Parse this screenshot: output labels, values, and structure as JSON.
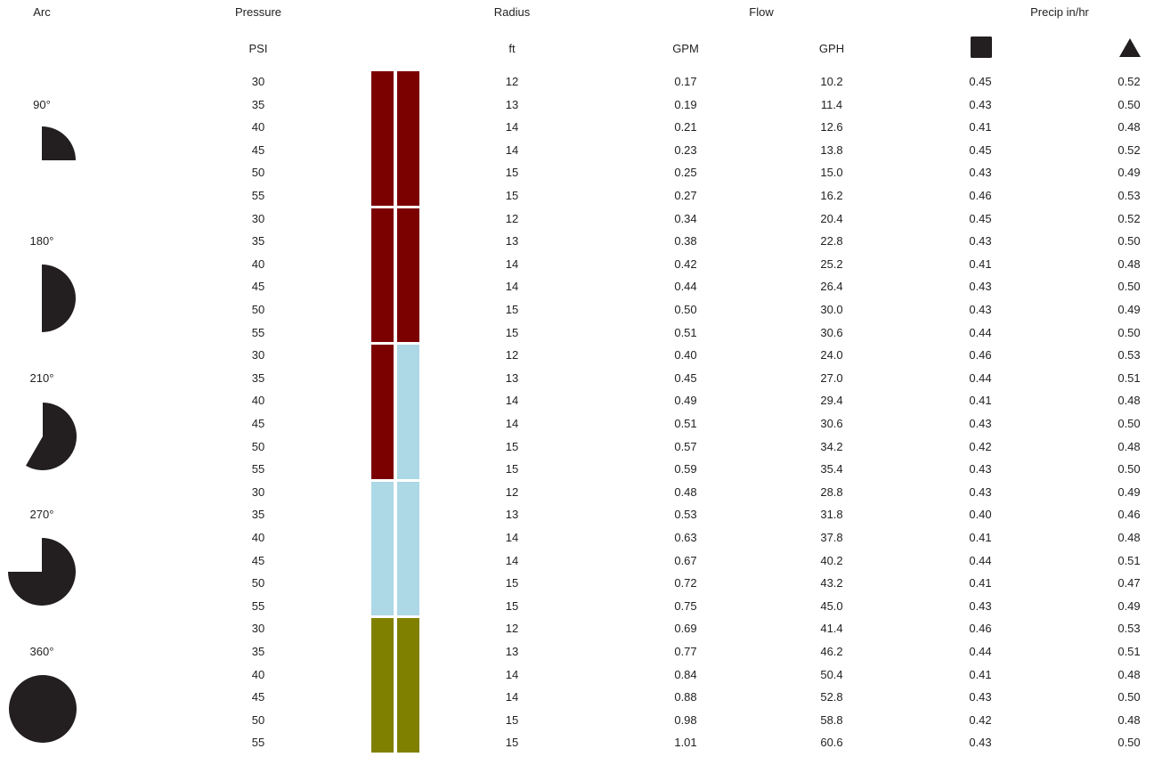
{
  "headers": {
    "arc": "Arc",
    "pressure": "Pressure",
    "radius": "Radius",
    "flow": "Flow",
    "precip": "Precip in/hr"
  },
  "units": {
    "pressure": "PSI",
    "radius": "ft",
    "gpm": "GPM",
    "gph": "GPH",
    "square_symbol": "square-symbol-icon",
    "triangle_symbol": "triangle-symbol-icon"
  },
  "colors": {
    "dark_red": "#7b0000",
    "light_blue": "#add8e6",
    "olive": "#808000",
    "icon_fill": "#231f20"
  },
  "groups": [
    {
      "arc": "90°",
      "icon": "quarter-circle-arc-icon",
      "bar_colors": [
        "dark_red",
        "dark_red"
      ],
      "rows": [
        {
          "pressure": "30",
          "radius": "12",
          "gpm": "0.17",
          "gph": "10.2",
          "precip_square": "0.45",
          "precip_triangle": "0.52"
        },
        {
          "pressure": "35",
          "radius": "13",
          "gpm": "0.19",
          "gph": "11.4",
          "precip_square": "0.43",
          "precip_triangle": "0.50"
        },
        {
          "pressure": "40",
          "radius": "14",
          "gpm": "0.21",
          "gph": "12.6",
          "precip_square": "0.41",
          "precip_triangle": "0.48"
        },
        {
          "pressure": "45",
          "radius": "14",
          "gpm": "0.23",
          "gph": "13.8",
          "precip_square": "0.45",
          "precip_triangle": "0.52"
        },
        {
          "pressure": "50",
          "radius": "15",
          "gpm": "0.25",
          "gph": "15.0",
          "precip_square": "0.43",
          "precip_triangle": "0.49"
        },
        {
          "pressure": "55",
          "radius": "15",
          "gpm": "0.27",
          "gph": "16.2",
          "precip_square": "0.46",
          "precip_triangle": "0.53"
        }
      ]
    },
    {
      "arc": "180°",
      "icon": "half-circle-arc-icon",
      "bar_colors": [
        "dark_red",
        "dark_red"
      ],
      "rows": [
        {
          "pressure": "30",
          "radius": "12",
          "gpm": "0.34",
          "gph": "20.4",
          "precip_square": "0.45",
          "precip_triangle": "0.52"
        },
        {
          "pressure": "35",
          "radius": "13",
          "gpm": "0.38",
          "gph": "22.8",
          "precip_square": "0.43",
          "precip_triangle": "0.50"
        },
        {
          "pressure": "40",
          "radius": "14",
          "gpm": "0.42",
          "gph": "25.2",
          "precip_square": "0.41",
          "precip_triangle": "0.48"
        },
        {
          "pressure": "45",
          "radius": "14",
          "gpm": "0.44",
          "gph": "26.4",
          "precip_square": "0.43",
          "precip_triangle": "0.50"
        },
        {
          "pressure": "50",
          "radius": "15",
          "gpm": "0.50",
          "gph": "30.0",
          "precip_square": "0.43",
          "precip_triangle": "0.49"
        },
        {
          "pressure": "55",
          "radius": "15",
          "gpm": "0.51",
          "gph": "30.6",
          "precip_square": "0.44",
          "precip_triangle": "0.50"
        }
      ]
    },
    {
      "arc": "210°",
      "icon": "210-degree-arc-icon",
      "bar_colors": [
        "dark_red",
        "light_blue"
      ],
      "rows": [
        {
          "pressure": "30",
          "radius": "12",
          "gpm": "0.40",
          "gph": "24.0",
          "precip_square": "0.46",
          "precip_triangle": "0.53"
        },
        {
          "pressure": "35",
          "radius": "13",
          "gpm": "0.45",
          "gph": "27.0",
          "precip_square": "0.44",
          "precip_triangle": "0.51"
        },
        {
          "pressure": "40",
          "radius": "14",
          "gpm": "0.49",
          "gph": "29.4",
          "precip_square": "0.41",
          "precip_triangle": "0.48"
        },
        {
          "pressure": "45",
          "radius": "14",
          "gpm": "0.51",
          "gph": "30.6",
          "precip_square": "0.43",
          "precip_triangle": "0.50"
        },
        {
          "pressure": "50",
          "radius": "15",
          "gpm": "0.57",
          "gph": "34.2",
          "precip_square": "0.42",
          "precip_triangle": "0.48"
        },
        {
          "pressure": "55",
          "radius": "15",
          "gpm": "0.59",
          "gph": "35.4",
          "precip_square": "0.43",
          "precip_triangle": "0.50"
        }
      ]
    },
    {
      "arc": "270°",
      "icon": "three-quarter-circle-arc-icon",
      "bar_colors": [
        "light_blue",
        "light_blue"
      ],
      "rows": [
        {
          "pressure": "30",
          "radius": "12",
          "gpm": "0.48",
          "gph": "28.8",
          "precip_square": "0.43",
          "precip_triangle": "0.49"
        },
        {
          "pressure": "35",
          "radius": "13",
          "gpm": "0.53",
          "gph": "31.8",
          "precip_square": "0.40",
          "precip_triangle": "0.46"
        },
        {
          "pressure": "40",
          "radius": "14",
          "gpm": "0.63",
          "gph": "37.8",
          "precip_square": "0.41",
          "precip_triangle": "0.48"
        },
        {
          "pressure": "45",
          "radius": "14",
          "gpm": "0.67",
          "gph": "40.2",
          "precip_square": "0.44",
          "precip_triangle": "0.51"
        },
        {
          "pressure": "50",
          "radius": "15",
          "gpm": "0.72",
          "gph": "43.2",
          "precip_square": "0.41",
          "precip_triangle": "0.47"
        },
        {
          "pressure": "55",
          "radius": "15",
          "gpm": "0.75",
          "gph": "45.0",
          "precip_square": "0.43",
          "precip_triangle": "0.49"
        }
      ]
    },
    {
      "arc": "360°",
      "icon": "full-circle-arc-icon",
      "bar_colors": [
        "olive",
        "olive"
      ],
      "rows": [
        {
          "pressure": "30",
          "radius": "12",
          "gpm": "0.69",
          "gph": "41.4",
          "precip_square": "0.46",
          "precip_triangle": "0.53"
        },
        {
          "pressure": "35",
          "radius": "13",
          "gpm": "0.77",
          "gph": "46.2",
          "precip_square": "0.44",
          "precip_triangle": "0.51"
        },
        {
          "pressure": "40",
          "radius": "14",
          "gpm": "0.84",
          "gph": "50.4",
          "precip_square": "0.41",
          "precip_triangle": "0.48"
        },
        {
          "pressure": "45",
          "radius": "14",
          "gpm": "0.88",
          "gph": "52.8",
          "precip_square": "0.43",
          "precip_triangle": "0.50"
        },
        {
          "pressure": "50",
          "radius": "15",
          "gpm": "0.98",
          "gph": "58.8",
          "precip_square": "0.42",
          "precip_triangle": "0.48"
        },
        {
          "pressure": "55",
          "radius": "15",
          "gpm": "1.01",
          "gph": "60.6",
          "precip_square": "0.43",
          "precip_triangle": "0.50"
        }
      ]
    }
  ]
}
